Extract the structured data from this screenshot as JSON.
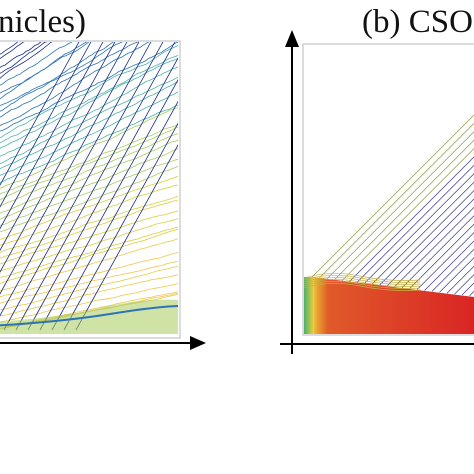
{
  "panels": [
    {
      "title_fragment": "nicles)"
    },
    {
      "title_fragment": "(b) CSOC"
    }
  ],
  "chart_data": [
    {
      "type": "line",
      "panel": "left",
      "title": "nicles)",
      "description_type": "trajectory time-space plot, many vehicle trajectories colored by speed",
      "x_range": [
        0,
        1
      ],
      "y_range": [
        0,
        1
      ],
      "grid": false,
      "colors": [
        "#1a2f8a",
        "#2c74b4",
        "#4fb3a9",
        "#a8cc5e",
        "#d8cf3c",
        "#ecc94a"
      ],
      "series": [
        {
          "values": [
            0.0,
            0.1
          ]
        },
        {
          "values": [
            0.05,
            0.2
          ]
        },
        {
          "values": [
            0.1,
            0.3
          ]
        },
        {
          "values": [
            0.15,
            0.4
          ]
        },
        {
          "values": [
            0.2,
            0.5
          ]
        }
      ]
    },
    {
      "type": "line",
      "panel": "right",
      "title": "(b) CSOC",
      "description_type": "trajectory time-space plot with a red congested region and diagonal trajectories",
      "x_range": [
        0,
        1
      ],
      "y_range": [
        0,
        1
      ],
      "grid": false,
      "colors": [
        "#2b3a90",
        "#e02a2a",
        "#f0d040",
        "#4ab06a"
      ],
      "series": [
        {
          "values": [
            0.0,
            0.35
          ]
        },
        {
          "values": [
            0.1,
            0.45
          ]
        },
        {
          "values": [
            0.2,
            0.55
          ]
        }
      ]
    }
  ]
}
